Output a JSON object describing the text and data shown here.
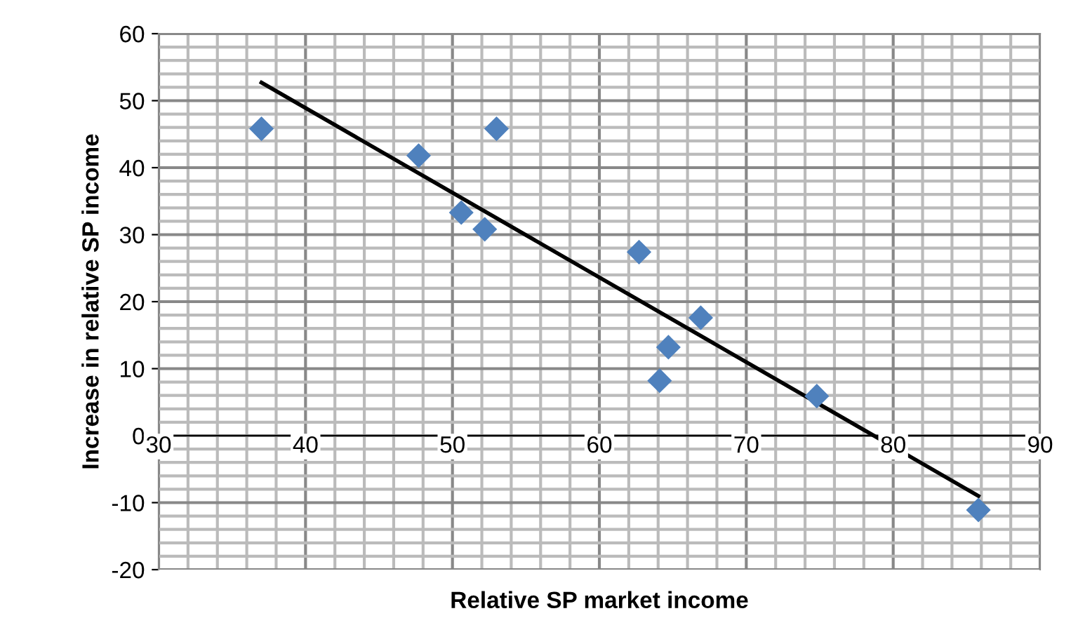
{
  "chart_data": {
    "type": "scatter",
    "xlabel": "Relative SP market income",
    "ylabel": "Increase in relative SP income",
    "grid": true,
    "xlim": [
      30,
      90
    ],
    "xticks": [
      30,
      40,
      50,
      60,
      70,
      80,
      90
    ],
    "ylim": [
      -20,
      60
    ],
    "yticks": [
      -20,
      -10,
      0,
      10,
      20,
      30,
      40,
      50,
      60
    ],
    "series": [
      {
        "marker": "diamond",
        "color": "#4f81bd",
        "x": [
          37.0,
          47.7,
          53.0,
          50.6,
          52.2,
          62.7,
          66.9,
          64.7,
          64.1,
          74.8,
          85.8
        ],
        "values": [
          45.8,
          41.8,
          45.8,
          33.3,
          30.8,
          27.4,
          17.6,
          13.2,
          8.2,
          5.9,
          -11.1
        ]
      },
      {
        "type": "line",
        "color": "#000000",
        "x": [
          37.0,
          85.8
        ],
        "values": [
          52.7,
          -9.0
        ]
      }
    ]
  }
}
